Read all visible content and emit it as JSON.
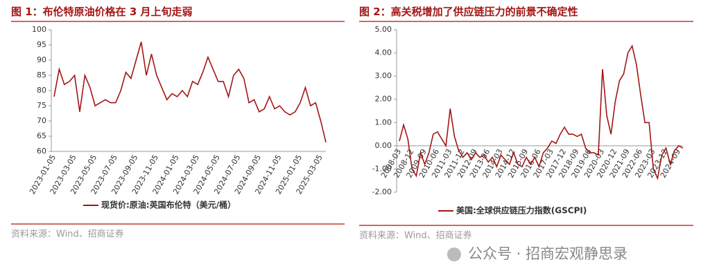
{
  "chart_data": [
    {
      "type": "line",
      "title": "图 1：布伦特原油价格在 3 月上旬走弱",
      "categories": [
        "2023-01-05",
        null,
        null,
        null,
        "2023-03-05",
        null,
        null,
        null,
        "2023-05-05",
        null,
        null,
        null,
        "2023-07-05",
        null,
        null,
        null,
        "2023-09-05",
        null,
        null,
        null,
        "2023-11-05",
        null,
        null,
        null,
        "2024-01-05",
        null,
        null,
        null,
        "2024-03-05",
        null,
        null,
        null,
        "2024-05-05",
        null,
        null,
        null,
        "2024-07-05",
        null,
        null,
        null,
        "2024-09-05",
        null,
        null,
        null,
        "2024-11-05",
        null,
        null,
        null,
        "2025-01-05",
        null,
        null,
        null,
        "2025-03-05",
        null
      ],
      "series": [
        {
          "name": "现货价:原油:英国布伦特（美元/桶）",
          "color": "#a31515",
          "values": [
            78,
            87,
            82,
            83,
            85,
            73,
            85,
            81,
            75,
            76,
            77,
            76,
            76,
            80,
            86,
            84,
            90,
            96,
            85,
            92,
            85,
            81,
            77,
            79,
            78,
            80,
            78,
            83,
            82,
            86,
            91,
            87,
            83,
            83,
            78,
            85,
            87,
            84,
            76,
            77,
            73,
            74,
            78,
            74,
            75,
            73,
            72,
            73,
            76,
            81,
            75,
            76,
            70,
            63
          ]
        }
      ],
      "ylim": [
        60,
        100
      ],
      "yticks": [
        60,
        65,
        70,
        75,
        80,
        85,
        90,
        95,
        100
      ],
      "grid": false,
      "source": "资料来源：Wind、招商证券"
    },
    {
      "type": "line",
      "title": "图 2：高关税增加了供应链压力的前景不确定性",
      "categories": [
        "2008-03",
        null,
        null,
        "2008-12",
        null,
        null,
        "2009-09",
        null,
        null,
        "2010-06",
        null,
        null,
        "2011-03",
        null,
        null,
        "2011-12",
        null,
        null,
        "2012-09",
        null,
        null,
        "2013-06",
        null,
        null,
        "2014-03",
        null,
        null,
        "2014-12",
        null,
        null,
        "2015-09",
        null,
        null,
        "2016-06",
        null,
        null,
        "2017-03",
        null,
        null,
        "2017-12",
        null,
        null,
        "2018-09",
        null,
        null,
        "2019-06",
        null,
        null,
        "2020-03",
        null,
        null,
        "2020-12",
        null,
        null,
        "2021-09",
        null,
        null,
        "2022-06",
        null,
        null,
        "2023-03",
        null,
        null,
        "2023-12",
        null,
        null,
        "2024-09",
        null
      ],
      "series": [
        {
          "name": "美国:全球供应链压力指数(GSCPI)",
          "color": "#a31515",
          "values": [
            0.2,
            0.9,
            0.3,
            -1.0,
            -1.3,
            -0.3,
            -0.8,
            -0.3,
            0.5,
            0.6,
            0.3,
            0.0,
            1.6,
            0.4,
            -0.2,
            -0.5,
            -0.3,
            -0.6,
            -0.3,
            -0.5,
            -0.4,
            -0.7,
            -0.5,
            -0.9,
            -0.4,
            -0.6,
            -0.8,
            -0.3,
            -0.8,
            -0.9,
            -0.5,
            -0.8,
            -0.5,
            -0.9,
            -0.3,
            -0.1,
            0.2,
            0.1,
            0.5,
            0.8,
            0.5,
            0.5,
            0.4,
            0.5,
            -0.1,
            -0.3,
            -0.3,
            -0.4,
            3.3,
            1.3,
            0.5,
            1.9,
            2.8,
            3.1,
            4.0,
            4.3,
            3.5,
            2.2,
            1.0,
            1.0,
            -1.0,
            -1.4,
            -0.4,
            -0.1,
            -0.8,
            -0.2,
            0.0,
            -0.1
          ]
        }
      ],
      "ylim": [
        -2,
        5
      ],
      "yticks": [
        {
          "value": -2,
          "label": "-2.00"
        },
        {
          "value": -1,
          "label": "-1.00"
        },
        {
          "value": 0,
          "label": "0.00"
        },
        {
          "value": 1,
          "label": "1.00"
        },
        {
          "value": 2,
          "label": "2.00"
        },
        {
          "value": 3,
          "label": "3.00"
        },
        {
          "value": 4,
          "label": "4.00"
        },
        {
          "value": 5,
          "label": "5.00"
        }
      ],
      "grid": false,
      "source": "资料来源：Wind、招商证券"
    }
  ],
  "watermark": "公众号 · 招商宏观静思录"
}
